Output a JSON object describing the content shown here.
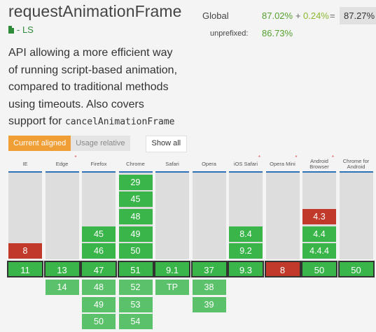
{
  "feature": {
    "title": "requestAnimationFrame",
    "spec_status": "- LS",
    "description_plain": "API allowing a more efficient way of running script-based animation, compared to traditional methods using timeouts. Also covers support for",
    "description_code": "cancelAnimationFrame"
  },
  "usage": {
    "global_label": "Global",
    "global_supported": "87.02%",
    "plus": "+",
    "global_partial": "0.24%",
    "equals": "=",
    "global_total": "87.27%",
    "unprefixed_label": "unprefixed:",
    "unprefixed_pct": "86.73%"
  },
  "view_buttons": {
    "current_aligned": "Current aligned",
    "usage_relative": "Usage relative",
    "show_all": "Show all"
  },
  "colors": {
    "supported": "#39b54a",
    "unsupported": "#c0392b",
    "future": "#5bc26b",
    "partial": "#8dc63f",
    "accent": "#f09e36"
  },
  "browsers": [
    {
      "name": "IE",
      "star": false,
      "past": [
        {
          "v": "8",
          "s": "n"
        }
      ],
      "current": {
        "v": "11",
        "s": "y"
      },
      "future": []
    },
    {
      "name": "Edge",
      "star": true,
      "past": [],
      "current": {
        "v": "13",
        "s": "y"
      },
      "future": [
        {
          "v": "14",
          "s": "f"
        }
      ]
    },
    {
      "name": "Firefox",
      "star": false,
      "past": [
        {
          "v": "45",
          "s": "y"
        },
        {
          "v": "46",
          "s": "y"
        }
      ],
      "current": {
        "v": "47",
        "s": "y"
      },
      "future": [
        {
          "v": "48",
          "s": "f"
        },
        {
          "v": "49",
          "s": "f"
        },
        {
          "v": "50",
          "s": "f"
        }
      ]
    },
    {
      "name": "Chrome",
      "star": false,
      "past": [
        {
          "v": "29",
          "s": "y"
        },
        {
          "v": "45",
          "s": "y"
        },
        {
          "v": "48",
          "s": "y"
        },
        {
          "v": "49",
          "s": "y"
        },
        {
          "v": "50",
          "s": "y"
        }
      ],
      "current": {
        "v": "51",
        "s": "y"
      },
      "future": [
        {
          "v": "52",
          "s": "f"
        },
        {
          "v": "53",
          "s": "f"
        },
        {
          "v": "54",
          "s": "f"
        }
      ]
    },
    {
      "name": "Safari",
      "star": false,
      "past": [],
      "current": {
        "v": "9.1",
        "s": "y"
      },
      "future": [
        {
          "v": "TP",
          "s": "f"
        }
      ]
    },
    {
      "name": "Opera",
      "star": false,
      "past": [],
      "current": {
        "v": "37",
        "s": "y"
      },
      "future": [
        {
          "v": "38",
          "s": "f"
        },
        {
          "v": "39",
          "s": "f"
        }
      ]
    },
    {
      "name": "iOS Safari",
      "star": true,
      "past": [
        {
          "v": "8.4",
          "s": "y"
        },
        {
          "v": "9.2",
          "s": "y"
        }
      ],
      "current": {
        "v": "9.3",
        "s": "y"
      },
      "future": []
    },
    {
      "name": "Opera Mini",
      "star": true,
      "past": [],
      "current": {
        "v": "8",
        "s": "n"
      },
      "future": []
    },
    {
      "name": "Android Browser",
      "star": true,
      "past": [
        {
          "v": "4.3",
          "s": "n"
        },
        {
          "v": "4.4",
          "s": "y"
        },
        {
          "v": "4.4.4",
          "s": "y"
        }
      ],
      "current": {
        "v": "50",
        "s": "y"
      },
      "future": []
    },
    {
      "name": "Chrome for Android",
      "star": false,
      "past": [],
      "current": {
        "v": "50",
        "s": "y"
      },
      "future": []
    }
  ]
}
